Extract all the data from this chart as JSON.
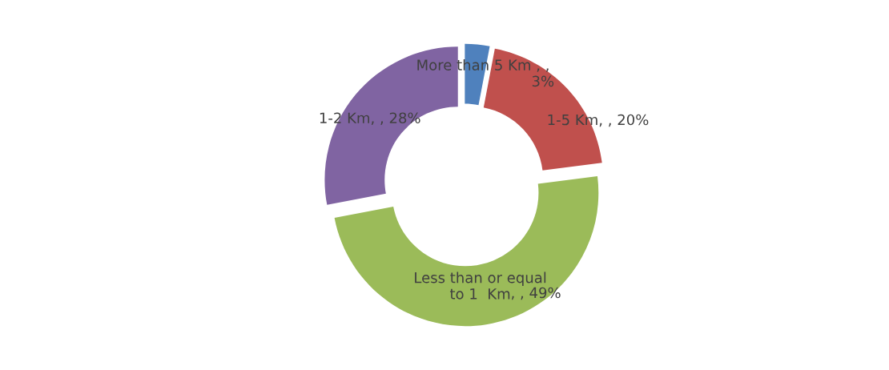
{
  "chart_data": {
    "type": "donut",
    "categories": [
      "More than 5 Km",
      "1-5 Km",
      "Less than or equal to 1  Km",
      "1-2 Km"
    ],
    "values": [
      3,
      20,
      49,
      28
    ],
    "colors": [
      "#4f81bd",
      "#c0504d",
      "#9bbb59",
      "#8064a2"
    ],
    "value_labels": [
      ", ,\n3%",
      ", , 20%",
      ", , 49%",
      ", , 28%"
    ]
  }
}
